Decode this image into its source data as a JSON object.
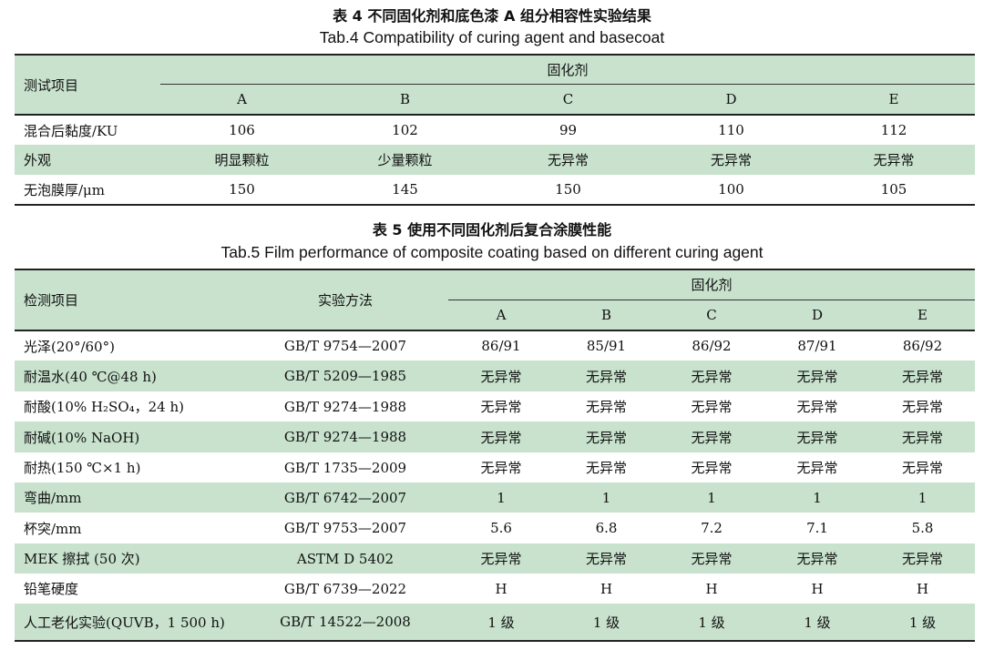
{
  "table4": {
    "caption_cn": "表 4 不同固化剂和底色漆 A 组分相容性实验结果",
    "caption_en": "Tab.4 Compatibility of curing agent and basecoat",
    "header_item": "测试项目",
    "header_group": "固化剂",
    "agents": [
      "A",
      "B",
      "C",
      "D",
      "E"
    ],
    "rows": [
      {
        "label": "混合后黏度/KU",
        "values": [
          "106",
          "102",
          "99",
          "110",
          "112"
        ]
      },
      {
        "label": "外观",
        "values": [
          "明显颗粒",
          "少量颗粒",
          "无异常",
          "无异常",
          "无异常"
        ]
      },
      {
        "label": "无泡膜厚/μm",
        "values": [
          "150",
          "145",
          "150",
          "100",
          "105"
        ]
      }
    ]
  },
  "table5": {
    "caption_cn": "表 5 使用不同固化剂后复合涂膜性能",
    "caption_en": "Tab.5 Film performance of composite coating based on different curing agent",
    "header_item": "检测项目",
    "header_method": "实验方法",
    "header_group": "固化剂",
    "agents": [
      "A",
      "B",
      "C",
      "D",
      "E"
    ],
    "rows": [
      {
        "label": "光泽(20°/60°)",
        "method": "GB/T 9754—2007",
        "values": [
          "86/91",
          "85/91",
          "86/92",
          "87/91",
          "86/92"
        ]
      },
      {
        "label": "耐温水(40 ℃@48 h)",
        "method": "GB/T 5209—1985",
        "values": [
          "无异常",
          "无异常",
          "无异常",
          "无异常",
          "无异常"
        ]
      },
      {
        "label": "耐酸(10% H₂SO₄，24 h)",
        "method": "GB/T 9274—1988",
        "values": [
          "无异常",
          "无异常",
          "无异常",
          "无异常",
          "无异常"
        ]
      },
      {
        "label": "耐碱(10% NaOH)",
        "method": "GB/T 9274—1988",
        "values": [
          "无异常",
          "无异常",
          "无异常",
          "无异常",
          "无异常"
        ]
      },
      {
        "label": "耐热(150 ℃×1 h)",
        "method": "GB/T 1735—2009",
        "values": [
          "无异常",
          "无异常",
          "无异常",
          "无异常",
          "无异常"
        ]
      },
      {
        "label": "弯曲/mm",
        "method": "GB/T 6742—2007",
        "values": [
          "1",
          "1",
          "1",
          "1",
          "1"
        ]
      },
      {
        "label": "杯突/mm",
        "method": "GB/T 9753—2007",
        "values": [
          "5.6",
          "6.8",
          "7.2",
          "7.1",
          "5.8"
        ]
      },
      {
        "label": "MEK 擦拭 (50 次)",
        "method": "ASTM D 5402",
        "values": [
          "无异常",
          "无异常",
          "无异常",
          "无异常",
          "无异常"
        ]
      },
      {
        "label": "铅笔硬度",
        "method": "GB/T 6739—2022",
        "values": [
          "H",
          "H",
          "H",
          "H",
          "H"
        ]
      },
      {
        "label": "人工老化实验(QUVB，1 500 h)",
        "method": "GB/T 14522—2008",
        "values": [
          "1 级",
          "1 级",
          "1 级",
          "1 级",
          "1 级"
        ]
      }
    ]
  },
  "colors": {
    "band_green": "#c8e2cd",
    "rule": "#222222"
  }
}
